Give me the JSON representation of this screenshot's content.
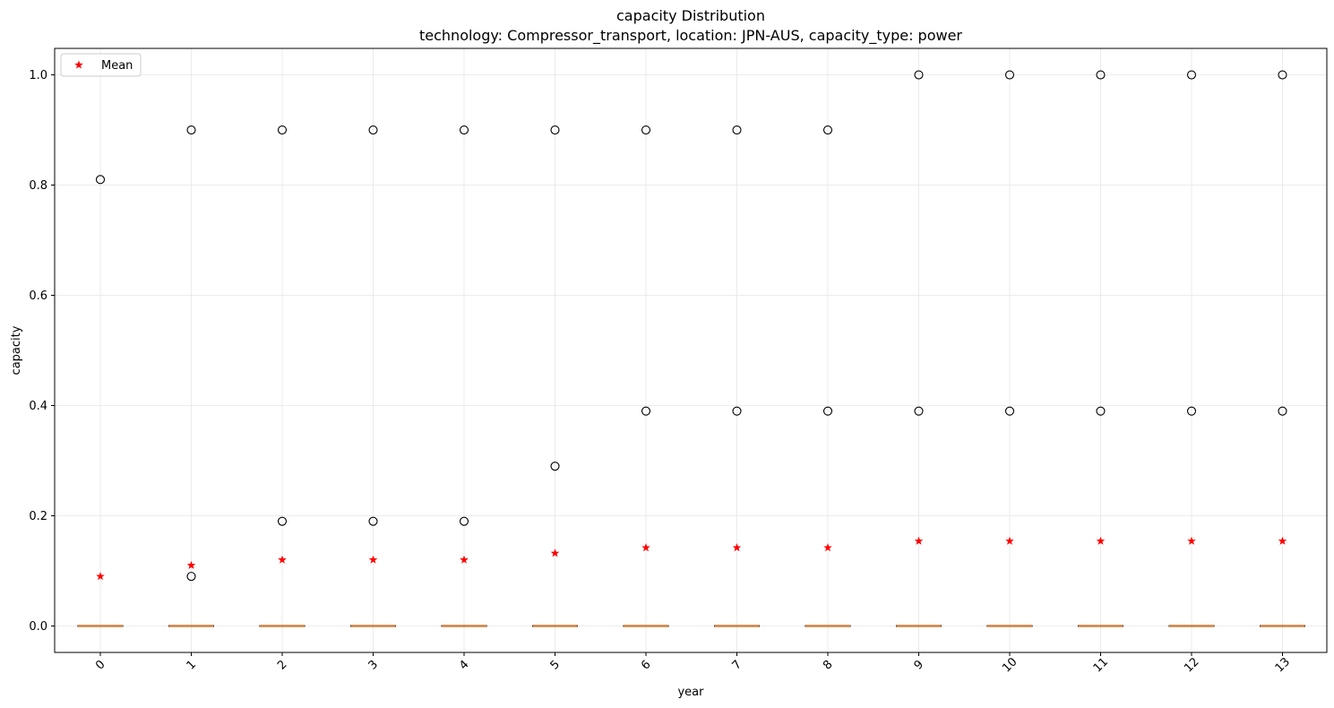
{
  "chart_data": {
    "type": "box",
    "title": "capacity Distribution",
    "subtitle": "technology: Compressor_transport, location: JPN-AUS, capacity_type: power",
    "xlabel": "year",
    "ylabel": "capacity",
    "categories": [
      "0",
      "1",
      "2",
      "3",
      "4",
      "5",
      "6",
      "7",
      "8",
      "9",
      "10",
      "11",
      "12",
      "13"
    ],
    "ylim": [
      -0.048,
      1.048
    ],
    "yticks": [
      0.0,
      0.2,
      0.4,
      0.6,
      0.8,
      1.0
    ],
    "ytick_labels": [
      "0.0",
      "0.2",
      "0.4",
      "0.6",
      "0.8",
      "1.0"
    ],
    "grid": true,
    "legend": {
      "position": "top-left",
      "entries": [
        "Mean"
      ]
    },
    "series": [
      {
        "name": "Mean",
        "marker": "star",
        "color": "#ff0000",
        "values": [
          0.09,
          0.11,
          0.12,
          0.12,
          0.12,
          0.132,
          0.142,
          0.142,
          0.142,
          0.154,
          0.154,
          0.154,
          0.154,
          0.154
        ]
      }
    ],
    "boxes": {
      "median": [
        0,
        0,
        0,
        0,
        0,
        0,
        0,
        0,
        0,
        0,
        0,
        0,
        0,
        0
      ],
      "q1": [
        0,
        0,
        0,
        0,
        0,
        0,
        0,
        0,
        0,
        0,
        0,
        0,
        0,
        0
      ],
      "q3": [
        0,
        0,
        0,
        0,
        0,
        0,
        0,
        0,
        0,
        0,
        0,
        0,
        0,
        0
      ],
      "whisker_low": [
        0,
        0,
        0,
        0,
        0,
        0,
        0,
        0,
        0,
        0,
        0,
        0,
        0,
        0
      ],
      "whisker_high": [
        0,
        0,
        0,
        0,
        0,
        0,
        0,
        0,
        0,
        0,
        0,
        0,
        0,
        0
      ],
      "outliers": [
        [
          0.81
        ],
        [
          0.9,
          0.09
        ],
        [
          0.9,
          0.19
        ],
        [
          0.9,
          0.19
        ],
        [
          0.9,
          0.19
        ],
        [
          0.9,
          0.29
        ],
        [
          0.9,
          0.39
        ],
        [
          0.9,
          0.39
        ],
        [
          0.9,
          0.39
        ],
        [
          1.0,
          0.39
        ],
        [
          1.0,
          0.39
        ],
        [
          1.0,
          0.39
        ],
        [
          1.0,
          0.39
        ],
        [
          1.0,
          0.39
        ]
      ]
    },
    "colors": {
      "median": "#ff7f0e",
      "box": "#000000",
      "outlier": "#000000",
      "mean": "#ff0000",
      "grid": "#e6e6e6"
    }
  }
}
